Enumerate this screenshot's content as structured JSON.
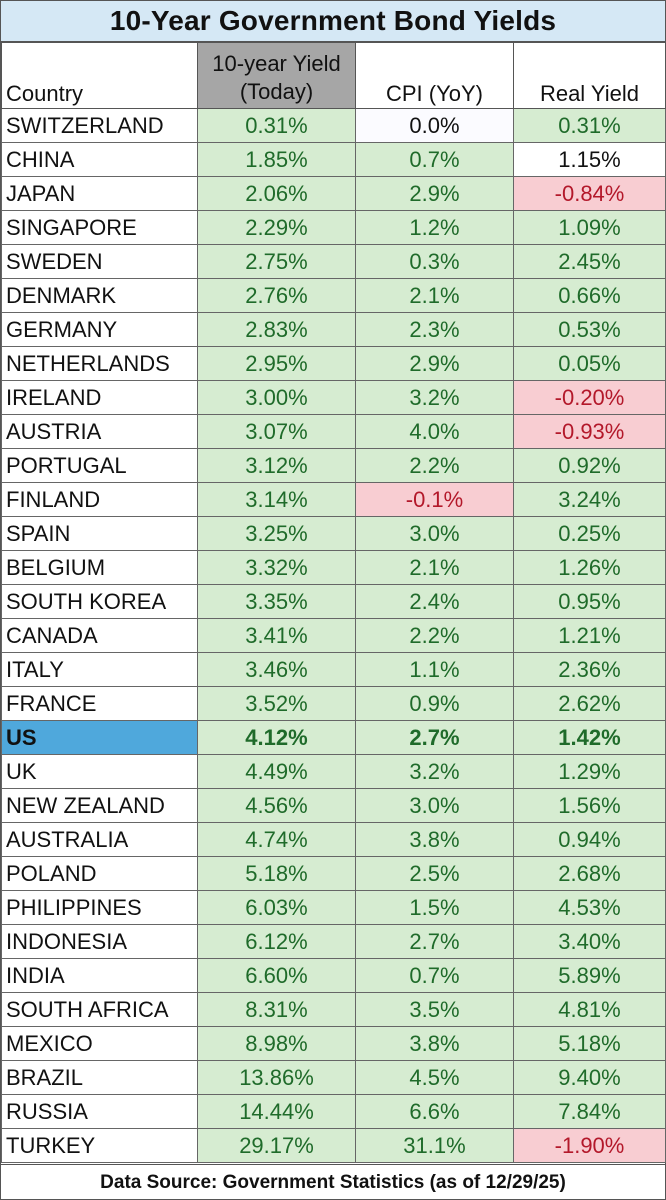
{
  "title": "10-Year Government Bond Yields",
  "footer": "Data Source: Government Statistics (as of 12/29/25)",
  "colors": {
    "positive_bg": "#d6ecd1",
    "positive_text": "#1f6b2a",
    "negative_bg": "#f8cdd2",
    "negative_text": "#b3182a",
    "highlight_row": "#4fa8dc",
    "yield_header_bg": "#a6a6a6",
    "title_bg": "#d5e8f5"
  },
  "chart_data": {
    "type": "table",
    "title": "10-Year Government Bond Yields",
    "columns": [
      "Country",
      "10-year Yield (Today)",
      "CPI (YoY)",
      "Real Yield"
    ],
    "header": {
      "country": "Country",
      "yield_line1": "10-year Yield",
      "yield_line2": "(Today)",
      "cpi": "CPI (YoY)",
      "real": "Real Yield"
    },
    "highlighted_country": "US",
    "rows": [
      {
        "country": "SWITZERLAND",
        "yield": "0.31%",
        "cpi": "0.0%",
        "real": "0.31%"
      },
      {
        "country": "CHINA",
        "yield": "1.85%",
        "cpi": "0.7%",
        "real": "1.15%"
      },
      {
        "country": "JAPAN",
        "yield": "2.06%",
        "cpi": "2.9%",
        "real": "-0.84%"
      },
      {
        "country": "SINGAPORE",
        "yield": "2.29%",
        "cpi": "1.2%",
        "real": "1.09%"
      },
      {
        "country": "SWEDEN",
        "yield": "2.75%",
        "cpi": "0.3%",
        "real": "2.45%"
      },
      {
        "country": "DENMARK",
        "yield": "2.76%",
        "cpi": "2.1%",
        "real": "0.66%"
      },
      {
        "country": "GERMANY",
        "yield": "2.83%",
        "cpi": "2.3%",
        "real": "0.53%"
      },
      {
        "country": "NETHERLANDS",
        "yield": "2.95%",
        "cpi": "2.9%",
        "real": "0.05%"
      },
      {
        "country": "IRELAND",
        "yield": "3.00%",
        "cpi": "3.2%",
        "real": "-0.20%"
      },
      {
        "country": "AUSTRIA",
        "yield": "3.07%",
        "cpi": "4.0%",
        "real": "-0.93%"
      },
      {
        "country": "PORTUGAL",
        "yield": "3.12%",
        "cpi": "2.2%",
        "real": "0.92%"
      },
      {
        "country": "FINLAND",
        "yield": "3.14%",
        "cpi": "-0.1%",
        "real": "3.24%"
      },
      {
        "country": "SPAIN",
        "yield": "3.25%",
        "cpi": "3.0%",
        "real": "0.25%"
      },
      {
        "country": "BELGIUM",
        "yield": "3.32%",
        "cpi": "2.1%",
        "real": "1.26%"
      },
      {
        "country": "SOUTH KOREA",
        "yield": "3.35%",
        "cpi": "2.4%",
        "real": "0.95%"
      },
      {
        "country": "CANADA",
        "yield": "3.41%",
        "cpi": "2.2%",
        "real": "1.21%"
      },
      {
        "country": "ITALY",
        "yield": "3.46%",
        "cpi": "1.1%",
        "real": "2.36%"
      },
      {
        "country": "FRANCE",
        "yield": "3.52%",
        "cpi": "0.9%",
        "real": "2.62%"
      },
      {
        "country": "US",
        "yield": "4.12%",
        "cpi": "2.7%",
        "real": "1.42%"
      },
      {
        "country": "UK",
        "yield": "4.49%",
        "cpi": "3.2%",
        "real": "1.29%"
      },
      {
        "country": "NEW ZEALAND",
        "yield": "4.56%",
        "cpi": "3.0%",
        "real": "1.56%"
      },
      {
        "country": "AUSTRALIA",
        "yield": "4.74%",
        "cpi": "3.8%",
        "real": "0.94%"
      },
      {
        "country": "POLAND",
        "yield": "5.18%",
        "cpi": "2.5%",
        "real": "2.68%"
      },
      {
        "country": "PHILIPPINES",
        "yield": "6.03%",
        "cpi": "1.5%",
        "real": "4.53%"
      },
      {
        "country": "INDONESIA",
        "yield": "6.12%",
        "cpi": "2.7%",
        "real": "3.40%"
      },
      {
        "country": "INDIA",
        "yield": "6.60%",
        "cpi": "0.7%",
        "real": "5.89%"
      },
      {
        "country": "SOUTH AFRICA",
        "yield": "8.31%",
        "cpi": "3.5%",
        "real": "4.81%"
      },
      {
        "country": "MEXICO",
        "yield": "8.98%",
        "cpi": "3.8%",
        "real": "5.18%"
      },
      {
        "country": "BRAZIL",
        "yield": "13.86%",
        "cpi": "4.5%",
        "real": "9.40%"
      },
      {
        "country": "RUSSIA",
        "yield": "14.44%",
        "cpi": "6.6%",
        "real": "7.84%"
      },
      {
        "country": "TURKEY",
        "yield": "29.17%",
        "cpi": "31.1%",
        "real": "-1.90%"
      }
    ]
  }
}
